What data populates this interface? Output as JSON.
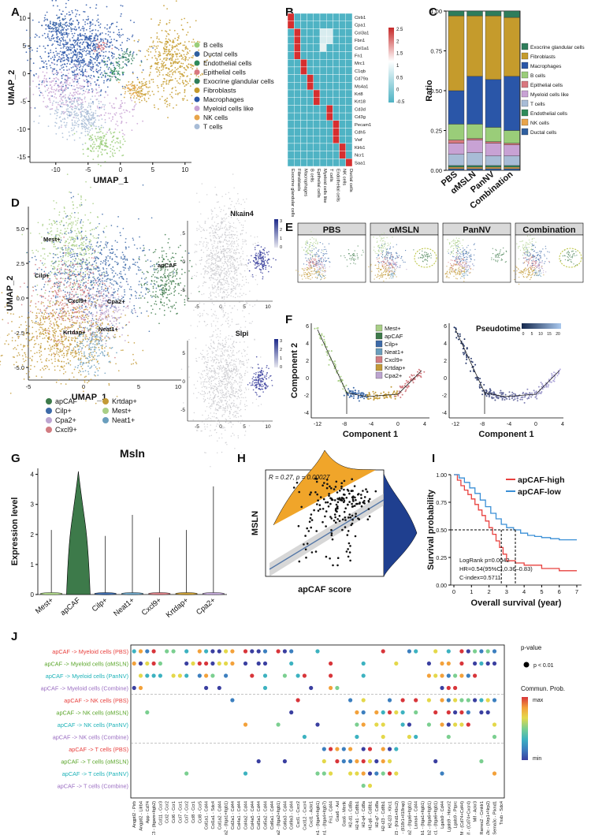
{
  "panel_letters": [
    "A",
    "B",
    "C",
    "D",
    "E",
    "F",
    "G",
    "H",
    "I",
    "J"
  ],
  "colors": {
    "B cells": "#9acd79",
    "Ductal cells": "#2f5f9f",
    "Endothelial cells": "#2d8a5a",
    "Epithelial cells": "#d9787f",
    "Exocrine glandular cells": "#2e7d5b",
    "Fibroblasts": "#c59b2c",
    "Macrophages": "#2a56a8",
    "Myeloid cells like": "#c8a2d4",
    "NK cells": "#e8a44a",
    "T cells": "#a8bcd6",
    "apCAF": "#3d7a4a",
    "Cilp+": "#3d6aa8",
    "Cpa2+": "#bca4d0",
    "Cxcl9+": "#d27c82",
    "Krtdap+": "#c39a36",
    "Mest+": "#a9cf86",
    "Neat1+": "#6a9ebd",
    "high": "#e8403e",
    "low": "#3a8fd6"
  },
  "chart_data": [
    {
      "id": "A",
      "type": "scatter",
      "title": "",
      "xlabel": "UMAP_1",
      "ylabel": "UMAP_2",
      "xlim": [
        -14,
        11
      ],
      "ylim": [
        -16,
        11
      ],
      "xticks": [
        -10,
        -5,
        0,
        5,
        10
      ],
      "yticks": [
        10,
        5,
        0,
        -5,
        -10,
        -15
      ],
      "legend": [
        "B cells",
        "Ductal cells",
        "Endothelial cells",
        "Epithelial cells",
        "Exocrine glandular cells",
        "Fibroblasts",
        "Macrophages",
        "Myeloid cells like",
        "NK cells",
        "T cells"
      ]
    },
    {
      "id": "B",
      "type": "heatmap",
      "genes": [
        "Ctrb1",
        "Cpa1",
        "Col3a1",
        "Fbn1",
        "Col1a1",
        "Fn1",
        "Mrc1",
        "C1qb",
        "Cd79a",
        "Ms4a1",
        "Krt8",
        "Krt18",
        "Cd3d",
        "Cd3g",
        "Pecam1",
        "Cdh5",
        "Vwf",
        "Klrb1",
        "Ncr1",
        "Saa1"
      ],
      "celltypes": [
        "Exocrine glandular cells",
        "Fibroblasts",
        "Macrophages",
        "B cells",
        "Epithelial cells",
        "Myeloid cells like",
        "T cells",
        "Endothelial cells",
        "NK cells",
        "Ductal cells"
      ],
      "colorbar_ticks": [
        "2.5",
        "2",
        "1.5",
        "1",
        "0.5",
        "0",
        "-0.5"
      ]
    },
    {
      "id": "C",
      "type": "bar",
      "stacked": true,
      "ylabel": "Ratio",
      "categories": [
        "PBS",
        "αMSLN",
        "PanNV",
        "Combination"
      ],
      "yticks": [
        "1.00",
        "0.75",
        "0.50",
        "0.25",
        "0.00"
      ],
      "legend": [
        "Exocrine glandular cells",
        "Fibroblasts",
        "Macrophages",
        "B cells",
        "Epithelial cells",
        "Myeloid cells like",
        "T cells",
        "Endothelial cells",
        "NK cells",
        "Ductal cells"
      ],
      "series": [
        {
          "name": "Ductal cells",
          "values": [
            0.01,
            0.01,
            0.01,
            0.01
          ]
        },
        {
          "name": "NK cells",
          "values": [
            0.01,
            0.01,
            0.01,
            0.01
          ]
        },
        {
          "name": "Endothelial cells",
          "values": [
            0.01,
            0.01,
            0.01,
            0.01
          ]
        },
        {
          "name": "T cells",
          "values": [
            0.07,
            0.08,
            0.06,
            0.06
          ]
        },
        {
          "name": "Myeloid cells like",
          "values": [
            0.07,
            0.08,
            0.08,
            0.07
          ]
        },
        {
          "name": "Epithelial cells",
          "values": [
            0.02,
            0.01,
            0.01,
            0.01
          ]
        },
        {
          "name": "B cells",
          "values": [
            0.1,
            0.09,
            0.09,
            0.08
          ]
        },
        {
          "name": "Macrophages",
          "values": [
            0.21,
            0.3,
            0.3,
            0.34
          ]
        },
        {
          "name": "Fibroblasts",
          "values": [
            0.47,
            0.38,
            0.4,
            0.37
          ]
        },
        {
          "name": "Exocrine glandular cells",
          "values": [
            0.03,
            0.03,
            0.03,
            0.04
          ]
        }
      ]
    },
    {
      "id": "D",
      "type": "scatter",
      "xlabel": "UMAP_1",
      "ylabel": "UMAP_2",
      "xticks": [
        -5,
        0,
        5,
        10
      ],
      "yticks": [
        "5.0",
        "2.5",
        "0.0",
        "-2.5",
        "-5.0"
      ],
      "cluster_labels": [
        "Mest+",
        "Cilp+",
        "apCAF",
        "Cxcl9+",
        "Cpa2+",
        "Krtdap+",
        "Neat1+"
      ],
      "legend": [
        "apCAF",
        "Cilp+",
        "Cpa2+",
        "Cxcl9+",
        "Krtdap+",
        "Mest+",
        "Neat1+"
      ],
      "feature_plots": [
        {
          "gene": "Nkain4",
          "scale": [
            "3",
            "2",
            "1",
            "0"
          ]
        },
        {
          "gene": "Slpi",
          "scale": [
            "3",
            "2",
            "1",
            "0"
          ]
        }
      ],
      "feature_xticks": [
        -5,
        0,
        5,
        10
      ],
      "feature_yticks": [
        5,
        0,
        -5
      ]
    },
    {
      "id": "E",
      "type": "scatter",
      "facets": [
        "PBS",
        "αMSLN",
        "PanNV",
        "Combination"
      ]
    },
    {
      "id": "F",
      "type": "scatter",
      "xlabel": "Component 1",
      "ylabel": "Component 2",
      "xticks": [
        -12,
        -8,
        -4,
        0,
        4
      ],
      "yticks": [
        6,
        4,
        2,
        0,
        -2,
        -4
      ],
      "legend": [
        "Mest+",
        "apCAF",
        "Cilp+",
        "Neat1+",
        "Cxcl9+",
        "Krtdap+",
        "Cpa2+"
      ],
      "pseudotime_title": "Pseudotime",
      "pseudotime_ticks": [
        "0",
        "5",
        "10",
        "15",
        "20"
      ]
    },
    {
      "id": "G",
      "type": "violin",
      "title": "Msln",
      "ylabel": "Expression level",
      "categories": [
        "Mest+",
        "apCAF",
        "Cilp+",
        "Neat1+",
        "Cxcl9+",
        "Krtdap+",
        "Cpa2+"
      ],
      "max_values": [
        2.15,
        4.1,
        1.95,
        2.65,
        1.9,
        2.15,
        3.6
      ],
      "ylim": [
        0,
        4.2
      ],
      "yticks": [
        "4",
        "3",
        "2",
        "1",
        "0"
      ]
    },
    {
      "id": "H",
      "type": "scatter",
      "xlabel": "apCAF score",
      "ylabel": "MSLN",
      "annotation": "R = 0.27, p = 0.00027"
    },
    {
      "id": "I",
      "type": "line",
      "xlabel": "Overall survival (year)",
      "ylabel": "Survival probability",
      "xticks": [
        "0",
        "1",
        "2",
        "3",
        "4",
        "5",
        "6",
        "7"
      ],
      "yticks": [
        "1.00",
        "0.75",
        "0.50",
        "0.25",
        "0.00"
      ],
      "legend": [
        "apCAF-high",
        "apCAF-low"
      ],
      "stats": [
        "LogRank p=0.0042",
        "HR=0.54(95%CI,0.36–0.83)",
        "C-index=0.5711"
      ],
      "series": [
        {
          "name": "apCAF-high",
          "x": [
            0,
            0.2,
            0.4,
            0.6,
            0.8,
            1.0,
            1.2,
            1.4,
            1.6,
            1.8,
            2.0,
            2.2,
            2.4,
            2.6,
            2.8,
            3.0,
            3.5,
            4.0,
            5.0,
            6.0,
            7.0
          ],
          "y": [
            1.0,
            0.95,
            0.9,
            0.86,
            0.82,
            0.78,
            0.73,
            0.68,
            0.63,
            0.58,
            0.52,
            0.46,
            0.4,
            0.34,
            0.28,
            0.22,
            0.2,
            0.18,
            0.15,
            0.13,
            0.13
          ]
        },
        {
          "name": "apCAF-low",
          "x": [
            0,
            0.3,
            0.6,
            0.9,
            1.2,
            1.5,
            1.8,
            2.1,
            2.4,
            2.7,
            3.0,
            3.4,
            3.8,
            4.2,
            4.6,
            5.0,
            5.5,
            6.0,
            7.0
          ],
          "y": [
            1.0,
            0.97,
            0.93,
            0.88,
            0.83,
            0.77,
            0.71,
            0.65,
            0.6,
            0.55,
            0.52,
            0.5,
            0.47,
            0.45,
            0.44,
            0.43,
            0.42,
            0.41,
            0.41
          ]
        }
      ],
      "median_x": [
        2.7,
        3.5
      ]
    },
    {
      "id": "J",
      "type": "scatter",
      "subtype": "dotplot",
      "rows": [
        "apCAF -> Myeloid cells (PBS)",
        "apCAF -> Myeloid cells (αMSLN)",
        "apCAF -> Myeloid cells (PanNV)",
        "apCAF -> Myeloid cells (Combine)",
        "apCAF -> NK cells (PBS)",
        "apCAF -> NK cells (αMSLN)",
        "apCAF -> NK cells (PanNV)",
        "apCAF -> NK cells (Combine)",
        "apCAF -> T cells (PBS)",
        "apCAF -> T cells (αMSLN)",
        "apCAF -> T cells (PanNV)",
        "apCAF -> T cells (Combine)"
      ],
      "row_groups": [
        "PBS",
        "αMSLN",
        "PanNV",
        "Combine"
      ],
      "columns": [
        "Angptl2 - Pirb",
        "Angptl2 - Lilrb4",
        "App - Cd74",
        "C3 - (Itgam+Itgb2)",
        "Ccl11 - Ccr3",
        "Ccl2 - Ccr2",
        "Ccl6 - Ccr1",
        "Ccl7 - Ccr1",
        "Ccl7 - Ccr2",
        "Ccl8 - Ccr1",
        "Ccl8 - Ccr5",
        "Col1a1 - Cd44",
        "Col1a1 - Sdc4",
        "Col1a2 - Cd44",
        "Col1a2 - (Itga1+Itgb1)",
        "Col2a1 - Cd44",
        "Col4a1 - Cd44",
        "Col4a2 - Cd44",
        "Col4a5 - Cd44",
        "Col5a1 - Cd44",
        "Col5a2 - Cd44",
        "Col6a1 - Cd44",
        "Col6a2 - (Itga2+Itgb1)",
        "Col6a3 - Cd44",
        "Col9a3 - Cd44",
        "Cxcl1 - Cxcr2",
        "Cxcl12 - Cxcr4",
        "Cxcl1 - Ackr1",
        "Fn1 - (Itga4+Itgb1)",
        "Fn1 - (Itga4+Itgb7)",
        "Fn1 - Cd44",
        "Gas6 - Axl",
        "Gas6 - Mertk",
        "H2-d1 - Cd8a",
        "H2-k1 - Cd8b1",
        "H2-q4 - Cd8a",
        "H2-q6 - Cd8b1",
        "H2-q7 - Cd8a",
        "H2-t23 - Cd8b1",
        "H2-t23 - Klrc1",
        "H2-t23 - (Klrd1+Klrc2)",
        "Il18 - (Il18r1+Il18rap)",
        "Lama2 - (Itga6+Itgb1)",
        "Lama4 - Cd44",
        "Lamb1 - (Itga1+Itgb1)",
        "Lamb2 - (Itga6+Itgb1)",
        "Lamc1 - (Itga6+Itgb1)",
        "Lgals9 - Cd44",
        "Lgals9 - Havcr2",
        "Lgals9 - Ptprc",
        "Mif - (Cd74+Cd44)",
        "Mif - (Cd74+Cxcr4)",
        "Mif - Ackr3",
        "Rarres2 - Cmklr1",
        "Sema3c - (Nrp1+Nrp2)",
        "Sema3c - Plxnd1",
        "Tnxb - Sdc4"
      ],
      "legend_title": "p-value",
      "legend_item": "p < 0.01",
      "colorbar_title": "Commun. Prob.",
      "colorbar_max": "max",
      "colorbar_min": "min"
    }
  ]
}
